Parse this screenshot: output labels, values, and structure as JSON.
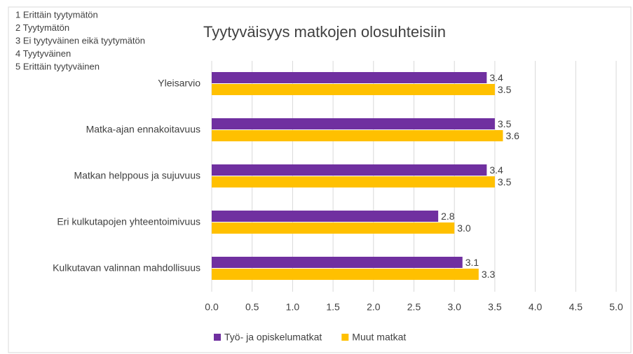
{
  "chart_data": {
    "type": "barh",
    "title": "Tyytyväisyys matkojen olosuhteisiin",
    "annotations": [
      "1  Erittäin tyytymätön",
      "2  Tyytymätön",
      "3  Ei tyytyväinen eikä tyytymätön",
      "4  Tyytyväinen",
      "5  Erittäin tyytyväinen"
    ],
    "categories": [
      "Yleisarvio",
      "Matka-ajan ennakoitavuus",
      "Matkan helppous ja sujuvuus",
      "Eri kulkutapojen yhteentoimivuus",
      "Kulkutavan valinnan mahdollisuus"
    ],
    "series": [
      {
        "name": "Työ- ja opiskelumatkat",
        "color": "#7030a0",
        "values": [
          3.4,
          3.5,
          3.4,
          2.8,
          3.1
        ],
        "value_labels": [
          "3.4",
          "3.5",
          "3.4",
          "2.8",
          "3.1"
        ]
      },
      {
        "name": "Muut matkat",
        "color": "#ffc000",
        "values": [
          3.5,
          3.6,
          3.5,
          3.0,
          3.3
        ],
        "value_labels": [
          "3.5",
          "3.6",
          "3.5",
          "3.0",
          "3.3"
        ]
      }
    ],
    "xlim": [
      0,
      5
    ],
    "xticks": [
      {
        "value": 0,
        "label": "0.0"
      },
      {
        "value": 0.5,
        "label": "0.5"
      },
      {
        "value": 1,
        "label": "1.0"
      },
      {
        "value": 1.5,
        "label": "1.5"
      },
      {
        "value": 2,
        "label": "2.0"
      },
      {
        "value": 2.5,
        "label": "2.5"
      },
      {
        "value": 3,
        "label": "3.0"
      },
      {
        "value": 3.5,
        "label": "3.5"
      },
      {
        "value": 4,
        "label": "4.0"
      },
      {
        "value": 4.5,
        "label": "4.5"
      },
      {
        "value": 5,
        "label": "5.0"
      }
    ],
    "grid": true,
    "legend": "bottom"
  }
}
